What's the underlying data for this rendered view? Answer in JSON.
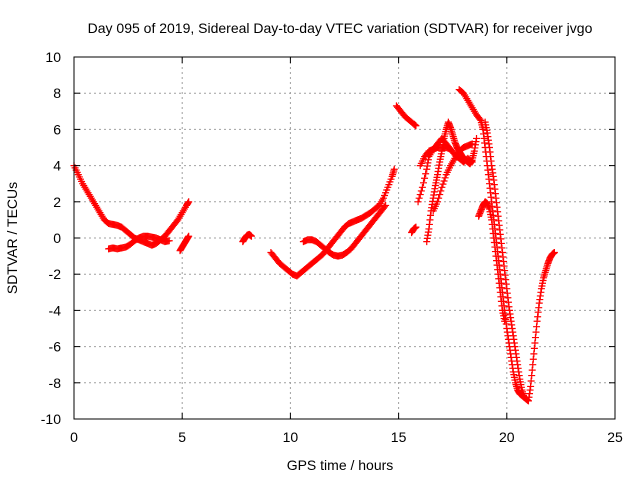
{
  "chart_data": {
    "type": "scatter",
    "title": "Day 095 of 2019, Sidereal Day-to-day VTEC variation (SDTVAR) for receiver jvgo",
    "xlabel": "GPS time / hours",
    "ylabel": "SDTVAR / TECUs",
    "xlim": [
      0,
      25
    ],
    "ylim": [
      -10,
      10
    ],
    "xticks": [
      "0",
      "5",
      "10",
      "15",
      "20",
      "25"
    ],
    "yticks": [
      "-10",
      "-8",
      "-6",
      "-4",
      "-2",
      "0",
      "2",
      "4",
      "6",
      "8",
      "10"
    ],
    "grid": true,
    "marker": "+",
    "color": "#ff0000",
    "segments": [
      [
        [
          0.0,
          4.0
        ],
        [
          0.2,
          3.5
        ],
        [
          0.4,
          3.0
        ],
        [
          0.6,
          2.6
        ],
        [
          0.8,
          2.2
        ],
        [
          1.0,
          1.8
        ],
        [
          1.2,
          1.4
        ],
        [
          1.4,
          1.0
        ],
        [
          1.6,
          0.8
        ],
        [
          1.8,
          0.75
        ],
        [
          2.0,
          0.7
        ],
        [
          2.2,
          0.6
        ],
        [
          2.4,
          0.4
        ],
        [
          2.6,
          0.2
        ],
        [
          2.8,
          0.0
        ],
        [
          3.0,
          -0.1
        ],
        [
          3.2,
          -0.2
        ],
        [
          3.4,
          -0.3
        ],
        [
          3.6,
          -0.4
        ],
        [
          3.8,
          -0.3
        ],
        [
          4.0,
          -0.1
        ],
        [
          4.2,
          0.1
        ],
        [
          4.4,
          0.4
        ],
        [
          4.6,
          0.7
        ],
        [
          4.8,
          1.0
        ],
        [
          5.0,
          1.4
        ],
        [
          5.2,
          1.8
        ],
        [
          5.3,
          2.0
        ]
      ],
      [
        [
          1.6,
          -0.6
        ],
        [
          1.8,
          -0.55
        ],
        [
          2.0,
          -0.6
        ],
        [
          2.2,
          -0.55
        ],
        [
          2.4,
          -0.5
        ],
        [
          2.6,
          -0.35
        ],
        [
          2.8,
          -0.15
        ],
        [
          3.0,
          0.0
        ],
        [
          3.2,
          0.1
        ],
        [
          3.4,
          0.1
        ],
        [
          3.6,
          0.05
        ],
        [
          3.8,
          0.0
        ],
        [
          4.0,
          -0.1
        ],
        [
          4.2,
          -0.2
        ],
        [
          4.4,
          -0.15
        ]
      ],
      [
        [
          4.9,
          -0.7
        ],
        [
          5.0,
          -0.5
        ],
        [
          5.1,
          -0.3
        ],
        [
          5.2,
          -0.1
        ],
        [
          5.3,
          0.1
        ]
      ],
      [
        [
          7.8,
          -0.2
        ],
        [
          7.9,
          0.0
        ],
        [
          8.0,
          0.15
        ],
        [
          8.1,
          0.2
        ],
        [
          8.2,
          0.1
        ]
      ],
      [
        [
          9.1,
          -0.8
        ],
        [
          9.3,
          -1.1
        ],
        [
          9.5,
          -1.4
        ],
        [
          9.7,
          -1.6
        ],
        [
          9.9,
          -1.8
        ],
        [
          10.1,
          -2.0
        ],
        [
          10.3,
          -2.1
        ],
        [
          10.5,
          -1.9
        ],
        [
          10.7,
          -1.7
        ],
        [
          10.9,
          -1.5
        ],
        [
          11.1,
          -1.3
        ],
        [
          11.3,
          -1.1
        ],
        [
          11.5,
          -0.9
        ],
        [
          11.7,
          -0.6
        ],
        [
          11.9,
          -0.3
        ],
        [
          12.1,
          0.0
        ],
        [
          12.3,
          0.3
        ],
        [
          12.5,
          0.6
        ],
        [
          12.7,
          0.8
        ],
        [
          12.9,
          0.9
        ],
        [
          13.1,
          1.0
        ],
        [
          13.3,
          1.1
        ],
        [
          13.5,
          1.25
        ],
        [
          13.7,
          1.4
        ],
        [
          13.9,
          1.6
        ],
        [
          14.1,
          1.8
        ],
        [
          14.3,
          2.2
        ],
        [
          14.5,
          2.8
        ],
        [
          14.7,
          3.4
        ],
        [
          14.8,
          3.8
        ]
      ],
      [
        [
          10.6,
          -0.2
        ],
        [
          10.8,
          -0.1
        ],
        [
          11.0,
          -0.1
        ],
        [
          11.2,
          -0.2
        ],
        [
          11.4,
          -0.4
        ],
        [
          11.6,
          -0.6
        ],
        [
          11.8,
          -0.8
        ],
        [
          12.0,
          -0.95
        ],
        [
          12.2,
          -1.0
        ],
        [
          12.4,
          -0.95
        ],
        [
          12.6,
          -0.8
        ],
        [
          12.8,
          -0.6
        ],
        [
          13.0,
          -0.3
        ],
        [
          13.2,
          0.0
        ],
        [
          13.4,
          0.3
        ],
        [
          13.6,
          0.6
        ],
        [
          13.8,
          0.9
        ],
        [
          14.0,
          1.2
        ],
        [
          14.2,
          1.5
        ],
        [
          14.4,
          1.8
        ]
      ],
      [
        [
          14.9,
          7.3
        ],
        [
          15.1,
          7.0
        ],
        [
          15.3,
          6.7
        ],
        [
          15.5,
          6.5
        ],
        [
          15.7,
          6.3
        ],
        [
          15.8,
          6.2
        ]
      ],
      [
        [
          15.6,
          0.3
        ],
        [
          15.7,
          0.5
        ],
        [
          15.8,
          0.6
        ]
      ],
      [
        [
          15.9,
          2.0
        ],
        [
          16.1,
          2.8
        ],
        [
          16.3,
          3.8
        ],
        [
          16.4,
          4.5
        ],
        [
          16.6,
          4.9
        ],
        [
          16.8,
          5.2
        ],
        [
          17.0,
          5.5
        ],
        [
          17.2,
          5.2
        ],
        [
          17.4,
          4.9
        ],
        [
          17.6,
          4.6
        ],
        [
          17.8,
          4.4
        ],
        [
          18.0,
          4.2
        ],
        [
          18.2,
          4.4
        ],
        [
          18.4,
          4.2
        ]
      ],
      [
        [
          16.0,
          4.0
        ],
        [
          16.2,
          4.5
        ],
        [
          16.4,
          4.8
        ],
        [
          16.6,
          4.9
        ],
        [
          16.8,
          5.0
        ],
        [
          17.0,
          5.0
        ],
        [
          17.2,
          5.0
        ],
        [
          17.4,
          4.9
        ]
      ],
      [
        [
          16.3,
          -0.2
        ],
        [
          16.4,
          0.5
        ],
        [
          16.5,
          1.5
        ],
        [
          16.6,
          2.2
        ],
        [
          16.7,
          2.9
        ],
        [
          16.8,
          3.5
        ],
        [
          16.9,
          4.2
        ],
        [
          17.0,
          4.8
        ],
        [
          17.1,
          5.5
        ],
        [
          17.2,
          6.0
        ],
        [
          17.3,
          6.4
        ],
        [
          17.4,
          6.1
        ],
        [
          17.5,
          5.7
        ],
        [
          17.6,
          5.3
        ],
        [
          17.7,
          5.0
        ],
        [
          17.8,
          4.8
        ],
        [
          17.9,
          4.6
        ],
        [
          18.0,
          4.4
        ],
        [
          18.1,
          4.3
        ],
        [
          18.2,
          4.2
        ],
        [
          18.3,
          4.1
        ],
        [
          18.4,
          4.3
        ],
        [
          18.5,
          4.8
        ],
        [
          18.6,
          5.5
        ]
      ],
      [
        [
          16.6,
          1.5
        ],
        [
          16.8,
          2.0
        ],
        [
          17.0,
          2.8
        ],
        [
          17.2,
          3.5
        ],
        [
          17.4,
          4.0
        ],
        [
          17.6,
          4.4
        ],
        [
          17.8,
          4.8
        ],
        [
          18.0,
          5.0
        ],
        [
          18.2,
          5.1
        ],
        [
          18.4,
          5.2
        ]
      ],
      [
        [
          17.8,
          8.2
        ],
        [
          18.0,
          8.0
        ],
        [
          18.2,
          7.6
        ],
        [
          18.4,
          7.2
        ],
        [
          18.6,
          6.8
        ],
        [
          18.8,
          6.5
        ],
        [
          18.9,
          6.0
        ],
        [
          19.0,
          5.0
        ],
        [
          19.1,
          4.0
        ],
        [
          19.2,
          3.0
        ],
        [
          19.3,
          2.0
        ],
        [
          19.4,
          1.0
        ],
        [
          19.5,
          0.0
        ],
        [
          19.6,
          -1.0
        ],
        [
          19.7,
          -2.0
        ],
        [
          19.8,
          -3.0
        ],
        [
          19.9,
          -4.0
        ],
        [
          20.0,
          -5.0
        ],
        [
          20.1,
          -5.8
        ],
        [
          20.2,
          -6.6
        ],
        [
          20.3,
          -7.4
        ],
        [
          20.4,
          -8.0
        ],
        [
          20.5,
          -8.4
        ],
        [
          20.6,
          -8.6
        ],
        [
          20.7,
          -8.7
        ],
        [
          20.8,
          -8.8
        ],
        [
          20.9,
          -8.9
        ],
        [
          21.0,
          -9.0
        ],
        [
          21.1,
          -8.2
        ],
        [
          21.2,
          -7.0
        ],
        [
          21.3,
          -5.8
        ],
        [
          21.4,
          -4.6
        ],
        [
          21.5,
          -3.6
        ],
        [
          21.6,
          -2.8
        ],
        [
          21.7,
          -2.2
        ],
        [
          21.8,
          -1.8
        ],
        [
          21.9,
          -1.4
        ],
        [
          22.0,
          -1.1
        ],
        [
          22.1,
          -0.9
        ],
        [
          22.2,
          -0.8
        ]
      ],
      [
        [
          19.0,
          6.4
        ],
        [
          19.1,
          5.8
        ],
        [
          19.2,
          5.0
        ],
        [
          19.3,
          4.0
        ],
        [
          19.4,
          3.2
        ],
        [
          19.5,
          2.2
        ],
        [
          19.6,
          1.2
        ],
        [
          19.7,
          0.2
        ],
        [
          19.8,
          -0.8
        ],
        [
          19.9,
          -1.8
        ],
        [
          20.0,
          -2.8
        ],
        [
          20.1,
          -3.8
        ],
        [
          20.2,
          -4.6
        ],
        [
          20.3,
          -5.4
        ],
        [
          20.4,
          -6.2
        ],
        [
          20.5,
          -7.0
        ],
        [
          20.6,
          -7.8
        ],
        [
          20.7,
          -8.4
        ],
        [
          20.8,
          -8.8
        ]
      ],
      [
        [
          18.7,
          1.2
        ],
        [
          18.8,
          1.5
        ],
        [
          18.9,
          1.8
        ],
        [
          19.0,
          2.0
        ],
        [
          19.1,
          1.9
        ],
        [
          19.2,
          1.6
        ],
        [
          19.3,
          1.0
        ],
        [
          19.4,
          0.0
        ],
        [
          19.5,
          -1.0
        ],
        [
          19.6,
          -2.0
        ],
        [
          19.7,
          -3.0
        ],
        [
          19.8,
          -4.0
        ],
        [
          19.9,
          -4.6
        ]
      ]
    ]
  }
}
